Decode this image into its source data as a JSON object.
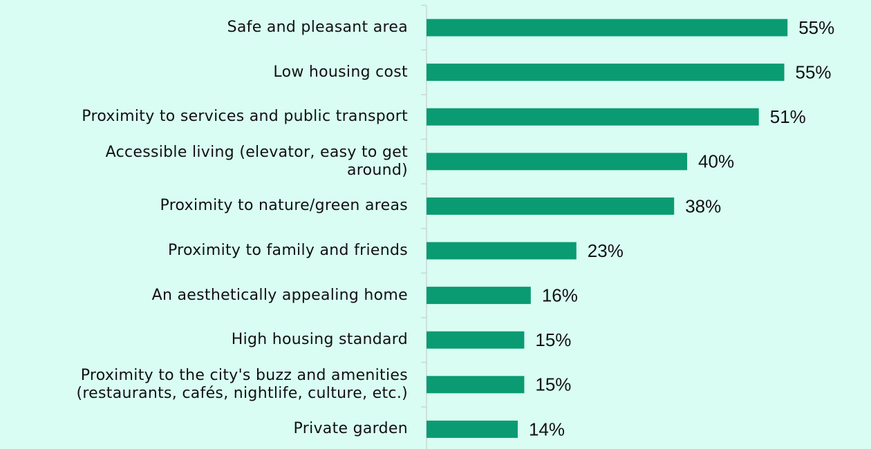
{
  "chart_data": {
    "type": "bar",
    "orientation": "horizontal",
    "categories": [
      "Safe and pleasant area",
      "Low housing cost",
      "Proximity to services and public transport",
      "Accessible living (elevator, easy to get\naround)",
      "Proximity to nature/green areas",
      "Proximity to family and friends",
      "An aesthetically appealing home",
      "High housing standard",
      "Proximity to the city's buzz and amenities\n(restaurants, cafés, nightlife, culture, etc.)",
      "Private garden"
    ],
    "values": [
      55.4,
      54.9,
      51,
      40,
      38,
      23,
      16,
      15,
      15,
      14
    ],
    "value_labels": [
      "55%",
      "55%",
      "51%",
      "40%",
      "38%",
      "23%",
      "16%",
      "15%",
      "15%",
      "14%"
    ],
    "color": "#0a9b72",
    "xlim": [
      0,
      68
    ]
  }
}
